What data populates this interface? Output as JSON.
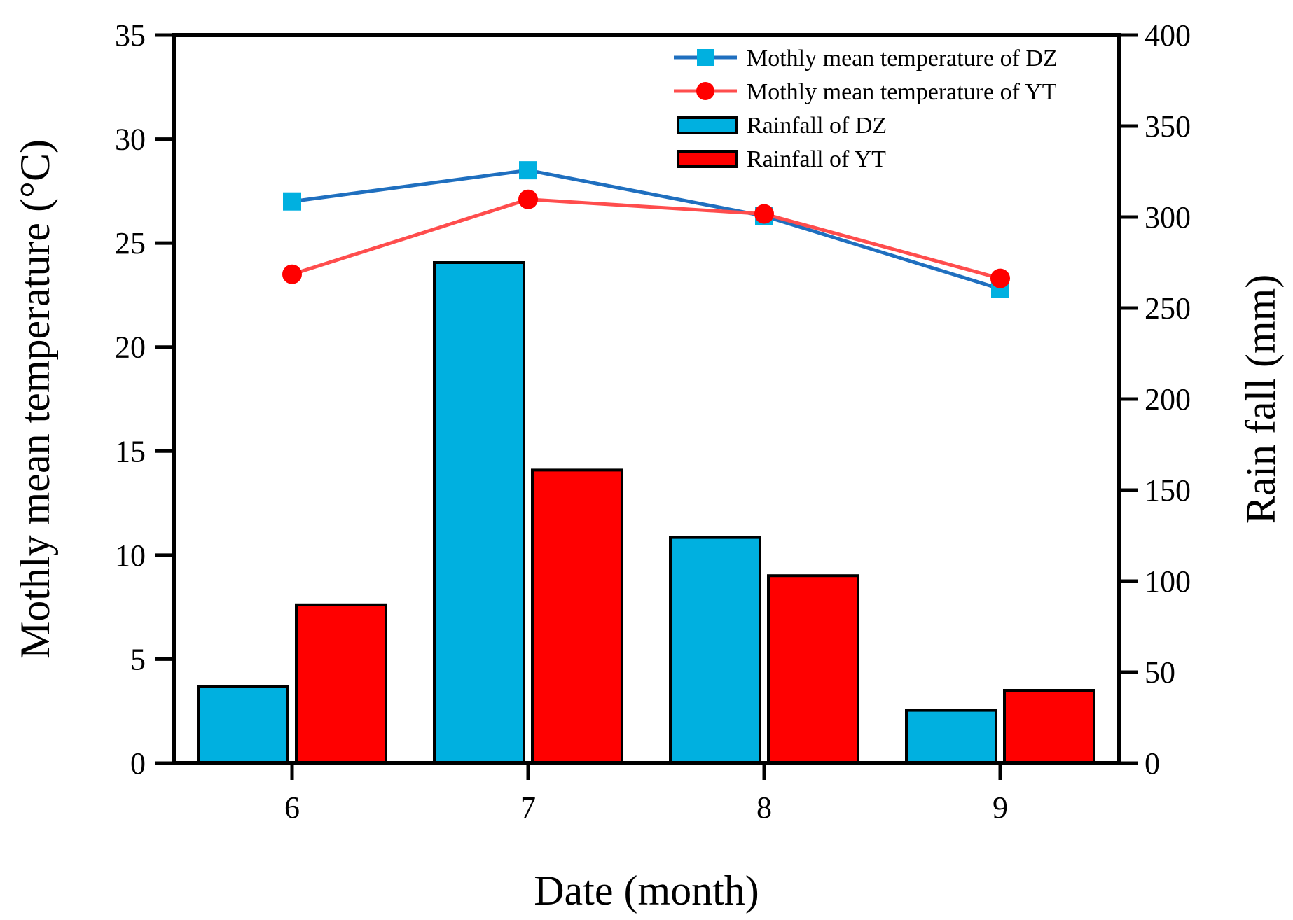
{
  "chart_data": {
    "type": "bar",
    "categories": [
      "6",
      "7",
      "8",
      "9"
    ],
    "xlabel": "Date (month)",
    "ylabel_left": "Mothly mean temperature (°C)",
    "ylabel_right": "Rain fall (mm)",
    "ylim_left": [
      0,
      35
    ],
    "ylim_right": [
      0,
      400
    ],
    "yticks_left": [
      0,
      5,
      10,
      15,
      20,
      25,
      30,
      35
    ],
    "yticks_right": [
      0,
      50,
      100,
      150,
      200,
      250,
      300,
      350,
      400
    ],
    "grid": false,
    "legend_position": "top-right",
    "bar_series": [
      {
        "name": "Rainfall of DZ",
        "axis": "right",
        "color": "#00b0e0",
        "values": [
          42,
          275,
          124,
          29
        ]
      },
      {
        "name": "Rainfall of YT",
        "axis": "right",
        "color": "#ff0000",
        "values": [
          87,
          161,
          103,
          40
        ]
      }
    ],
    "line_series": [
      {
        "name": "Mothly mean temperature of DZ",
        "axis": "left",
        "color": "#1f6fbf",
        "marker_color": "#00b0e0",
        "marker": "square",
        "values": [
          27.0,
          28.5,
          26.3,
          22.8
        ]
      },
      {
        "name": "Mothly mean temperature of YT",
        "axis": "left",
        "color": "#ff4d4d",
        "marker_color": "#ff0000",
        "marker": "circle",
        "values": [
          23.5,
          27.1,
          26.4,
          23.3
        ]
      }
    ],
    "legend": [
      "Mothly mean temperature of DZ",
      "Mothly mean temperature of YT",
      "Rainfall of DZ",
      "Rainfall of YT"
    ]
  }
}
